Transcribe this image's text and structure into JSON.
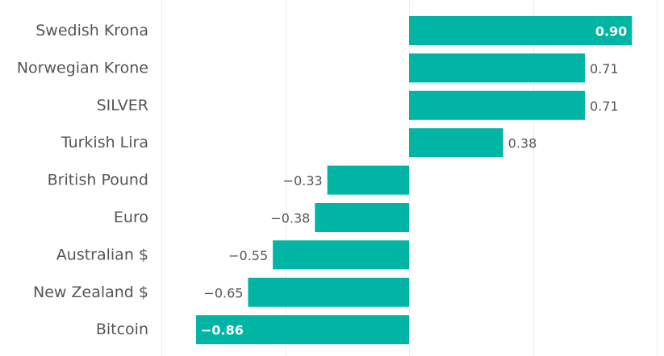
{
  "chart_data": {
    "type": "bar",
    "orientation": "horizontal",
    "categories": [
      "Swedish Krona",
      "Norwegian Krone",
      "SILVER",
      "Turkish Lira",
      "British Pound",
      "Euro",
      "Australian $",
      "New Zealand $",
      "Bitcoin"
    ],
    "values": [
      0.9,
      0.71,
      0.71,
      0.38,
      -0.33,
      -0.38,
      -0.55,
      -0.65,
      -0.86
    ],
    "data_labels": [
      "0.90",
      "0.71",
      "0.71",
      "0.38",
      "-0.33",
      "-0.38",
      "-0.55",
      "-0.65",
      "-0.86"
    ],
    "title": "",
    "xlabel": "",
    "ylabel": "",
    "xlim": [
      -1.0,
      1.0
    ],
    "gridlines": [
      -1.0,
      -0.5,
      0,
      0.5,
      1.0
    ],
    "grid": true,
    "legend": "none"
  },
  "colors": {
    "bar": "#00B5A3",
    "category_text": "#555555",
    "label_outside": "#555555",
    "label_inside": "#ffffff",
    "grid": "#eeeeee"
  }
}
